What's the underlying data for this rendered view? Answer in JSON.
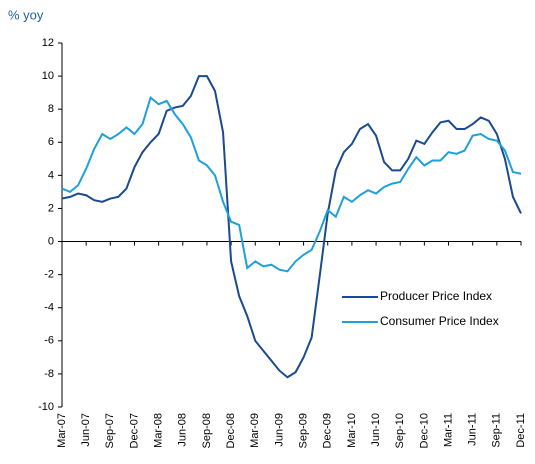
{
  "chart_data": {
    "type": "line",
    "ylabel": "% yoy",
    "categories": [
      "Mar-07",
      null,
      null,
      "Jun-07",
      null,
      null,
      "Sep-07",
      null,
      null,
      "Dec-07",
      null,
      null,
      "Mar-08",
      null,
      null,
      "Jun-08",
      null,
      null,
      "Sep-08",
      null,
      null,
      "Dec-08",
      null,
      null,
      "Mar-09",
      null,
      null,
      "Jun-09",
      null,
      null,
      "Sep-09",
      null,
      null,
      "Dec-09",
      null,
      null,
      "Mar-10",
      null,
      null,
      "Jun-10",
      null,
      null,
      "Sep-10",
      null,
      null,
      "Dec-10",
      null,
      null,
      "Mar-11",
      null,
      null,
      "Jun-11",
      null,
      null,
      "Sep-11",
      null,
      null,
      "Dec-11"
    ],
    "series": [
      {
        "name": "Producer Price Index",
        "color": "#1a4a8f",
        "values": [
          2.6,
          2.7,
          2.9,
          2.8,
          2.5,
          2.4,
          2.6,
          2.7,
          3.2,
          4.5,
          5.4,
          6.0,
          6.5,
          7.9,
          8.1,
          8.2,
          8.8,
          10.0,
          10.0,
          9.1,
          6.6,
          -1.2,
          -3.3,
          -4.5,
          -6.0,
          -6.6,
          -7.2,
          -7.8,
          -8.2,
          -7.9,
          -7.0,
          -5.8,
          -2.1,
          1.7,
          4.3,
          5.4,
          5.9,
          6.8,
          7.1,
          6.4,
          4.8,
          4.3,
          4.3,
          5.0,
          6.1,
          5.9,
          6.6,
          7.2,
          7.3,
          6.8,
          6.8,
          7.1,
          7.5,
          7.3,
          6.5,
          5.0,
          2.7,
          1.7
        ]
      },
      {
        "name": "Consumer Price Index",
        "color": "#1ea0dc",
        "values": [
          3.2,
          3.0,
          3.4,
          4.4,
          5.6,
          6.5,
          6.2,
          6.5,
          6.9,
          6.5,
          7.1,
          8.7,
          8.3,
          8.5,
          7.7,
          7.1,
          6.3,
          4.9,
          4.6,
          4.0,
          2.4,
          1.2,
          1.0,
          -1.6,
          -1.2,
          -1.5,
          -1.4,
          -1.7,
          -1.8,
          -1.2,
          -0.8,
          -0.5,
          0.6,
          1.9,
          1.5,
          2.7,
          2.4,
          2.8,
          3.1,
          2.9,
          3.3,
          3.5,
          3.6,
          4.4,
          5.1,
          4.6,
          4.9,
          4.9,
          5.4,
          5.3,
          5.5,
          6.4,
          6.5,
          6.2,
          6.1,
          5.5,
          4.2,
          4.1
        ]
      }
    ],
    "ylim": [
      -10,
      12
    ],
    "yticks": [
      -10,
      -8,
      -6,
      -4,
      -2,
      0,
      2,
      4,
      6,
      8,
      10,
      12
    ],
    "grid": false,
    "legend": "right"
  }
}
